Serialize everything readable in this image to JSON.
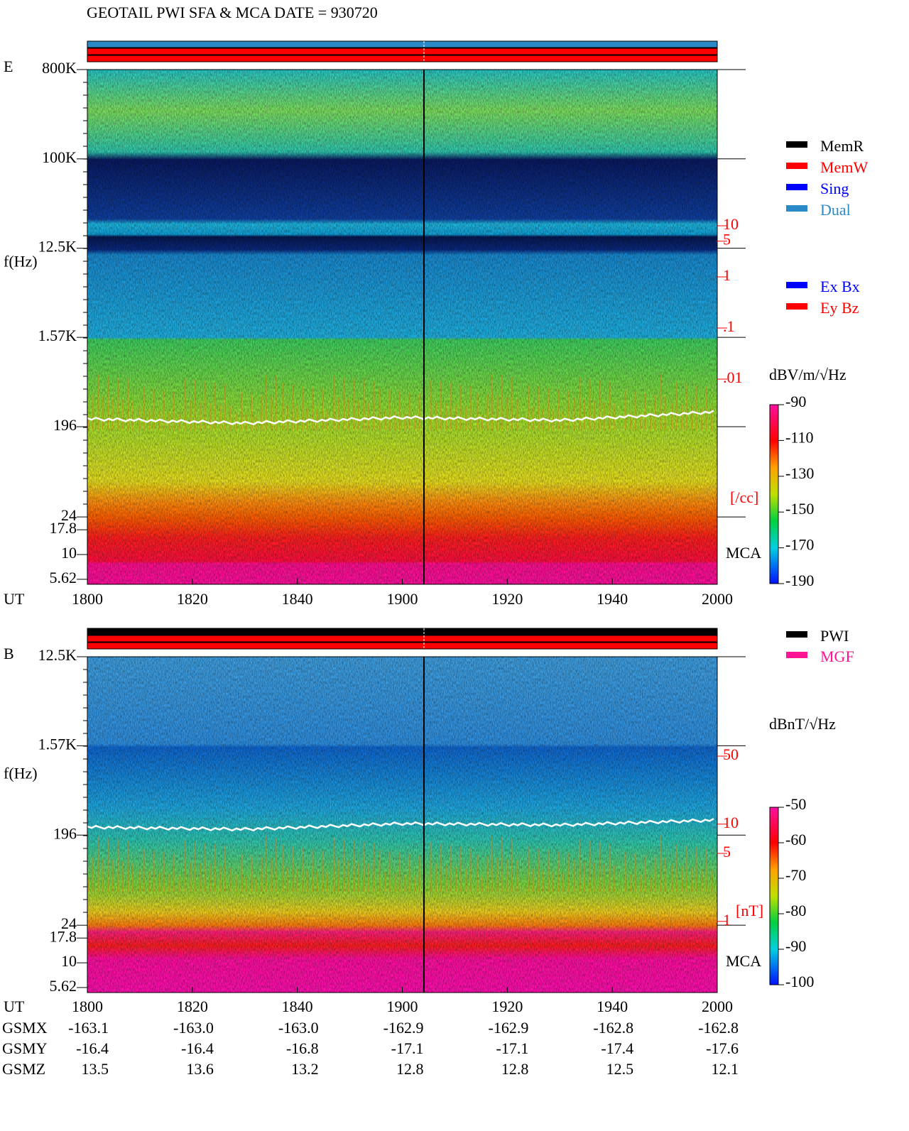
{
  "title": "GEOTAIL  PWI SFA & MCA   DATE = 930720",
  "panels": [
    {
      "component": "E",
      "ylabel": "f(Hz)",
      "log": true,
      "ylim": [
        5,
        800000
      ],
      "yticks": [
        {
          "value": 800000,
          "label": "800K"
        },
        {
          "value": 100000,
          "label": "100K"
        },
        {
          "value": 12500,
          "label": "12.5K"
        },
        {
          "value": 1570,
          "label": "1.57K"
        },
        196,
        24,
        17.8,
        10,
        5.62
      ],
      "xlabel": "UT",
      "xticks": [
        "1800",
        "1820",
        "1840",
        "1900",
        "1920",
        "1940",
        "2000"
      ],
      "mca_label": "MCA",
      "right_ticks": [
        10,
        5,
        1,
        {
          "value": 0.1,
          "label": ".1"
        },
        {
          "value": 0.01,
          "label": ".01"
        }
      ],
      "right_unit": "[/cc]",
      "colorbar": {
        "unit": "dBV/m/√Hz",
        "clim": [
          -190,
          -90
        ],
        "ticks": [
          -90,
          -110,
          -130,
          -150,
          -170,
          -190
        ]
      },
      "legends": [
        [
          {
            "name": "MemR",
            "color": "#000000"
          },
          {
            "name": "MemW",
            "color": "#ff0000"
          },
          {
            "name": "Sing",
            "color": "#0000ff"
          },
          {
            "name": "Dual",
            "color": "#2a8ac8"
          }
        ],
        [
          {
            "name": "Ex Bx",
            "color": "#0000ff"
          },
          {
            "name": "Ey Bz",
            "color": "#ff0000"
          }
        ]
      ]
    },
    {
      "component": "B",
      "ylabel": "f(Hz)",
      "log": true,
      "ylim": [
        5,
        12500
      ],
      "yticks": [
        {
          "value": 12500,
          "label": "12.5K"
        },
        {
          "value": 1570,
          "label": "1.57K"
        },
        196,
        24,
        17.8,
        10,
        5.62
      ],
      "xlabel": "UT",
      "xticks": [
        "1800",
        "1820",
        "1840",
        "1900",
        "1920",
        "1940",
        "2000"
      ],
      "mca_label": "MCA",
      "right_ticks": [
        50,
        10,
        5,
        1
      ],
      "right_unit": "[nT]",
      "colorbar": {
        "unit": "dBnT/√Hz",
        "clim": [
          -100,
          -50
        ],
        "ticks": [
          -50,
          -60,
          -70,
          -80,
          -90,
          -100
        ]
      },
      "legends": [
        [
          {
            "name": "PWI",
            "color": "#000000"
          },
          {
            "name": "MGF",
            "color": "#ff1493"
          }
        ]
      ]
    }
  ],
  "orbit": {
    "rows": [
      {
        "label": "GSMX",
        "values": [
          "-163.1",
          "-163.0",
          "-163.0",
          "-162.9",
          "-162.9",
          "-162.8",
          "-162.8"
        ]
      },
      {
        "label": "GSMY",
        "values": [
          "-16.4",
          "-16.4",
          "-16.8",
          "-17.1",
          "-17.1",
          "-17.4",
          "-17.6"
        ]
      },
      {
        "label": "GSMZ",
        "values": [
          "13.5",
          "13.6",
          "13.2",
          "12.8",
          "12.8",
          "12.5",
          "12.1"
        ]
      }
    ]
  }
}
